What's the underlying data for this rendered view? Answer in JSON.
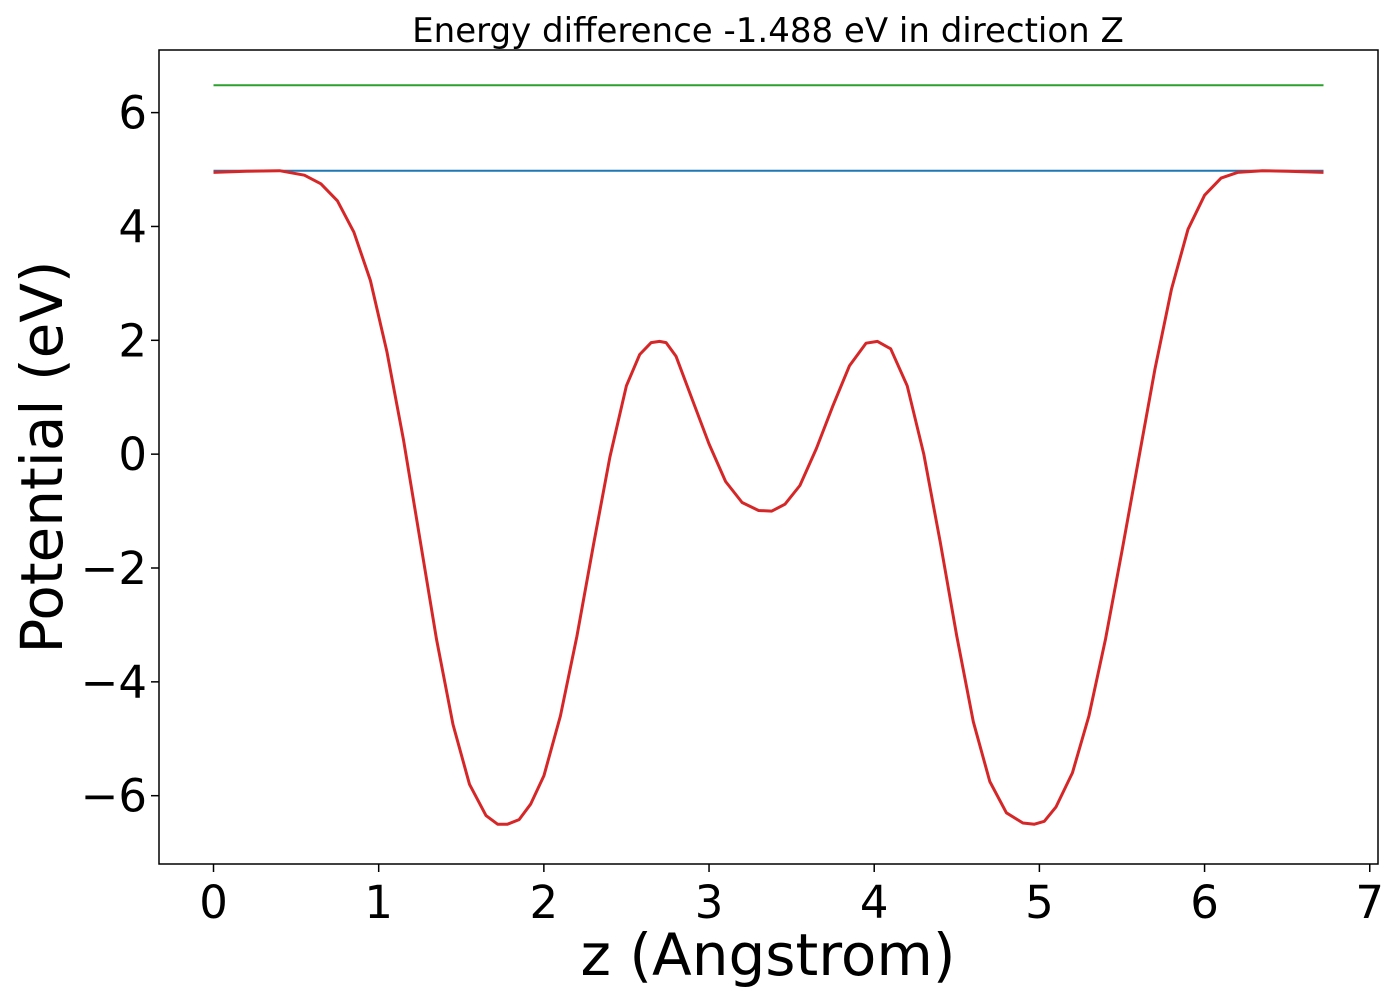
{
  "chart_data": {
    "type": "line",
    "title": "Energy difference -1.488 eV in direction Z",
    "xlabel": "z (Angstrom)",
    "ylabel": "Potential (eV)",
    "xlim": [
      -0.33,
      7.05
    ],
    "ylim": [
      -7.2,
      7.1
    ],
    "xticks": [
      0,
      1,
      2,
      3,
      4,
      5,
      6,
      7
    ],
    "xtick_labels": [
      "0",
      "1",
      "2",
      "3",
      "4",
      "5",
      "6",
      "7"
    ],
    "yticks": [
      -6,
      -4,
      -2,
      0,
      2,
      4,
      6
    ],
    "ytick_labels": [
      "−6",
      "−4",
      "−2",
      "0",
      "2",
      "4",
      "6"
    ],
    "grid": false,
    "series": [
      {
        "color": "#2ca02c",
        "x": [
          0,
          6.72
        ],
        "y": [
          6.48,
          6.48
        ]
      },
      {
        "color": "#1f77b4",
        "x": [
          0,
          6.72
        ],
        "y": [
          4.98,
          4.98
        ]
      },
      {
        "color": "#d62728",
        "x": [
          0,
          0.2,
          0.4,
          0.55,
          0.65,
          0.75,
          0.85,
          0.95,
          1.05,
          1.15,
          1.25,
          1.35,
          1.45,
          1.55,
          1.65,
          1.72,
          1.78,
          1.85,
          1.92,
          2.0,
          2.1,
          2.2,
          2.3,
          2.4,
          2.5,
          2.58,
          2.65,
          2.7,
          2.74,
          2.8,
          2.9,
          3.0,
          3.1,
          3.2,
          3.3,
          3.38,
          3.46,
          3.55,
          3.65,
          3.75,
          3.85,
          3.95,
          4.02,
          4.1,
          4.2,
          4.3,
          4.4,
          4.5,
          4.6,
          4.7,
          4.8,
          4.9,
          4.97,
          5.03,
          5.1,
          5.2,
          5.3,
          5.4,
          5.5,
          5.6,
          5.7,
          5.8,
          5.9,
          6.0,
          6.1,
          6.2,
          6.35,
          6.5,
          6.72
        ],
        "y": [
          4.95,
          4.97,
          4.98,
          4.9,
          4.75,
          4.45,
          3.9,
          3.05,
          1.8,
          0.25,
          -1.5,
          -3.25,
          -4.75,
          -5.8,
          -6.35,
          -6.5,
          -6.5,
          -6.42,
          -6.15,
          -5.65,
          -4.6,
          -3.2,
          -1.6,
          -0.05,
          1.2,
          1.75,
          1.96,
          1.98,
          1.96,
          1.72,
          0.95,
          0.18,
          -0.48,
          -0.85,
          -0.99,
          -1.0,
          -0.88,
          -0.55,
          0.1,
          0.85,
          1.55,
          1.95,
          1.98,
          1.85,
          1.2,
          0.0,
          -1.55,
          -3.2,
          -4.7,
          -5.75,
          -6.3,
          -6.48,
          -6.5,
          -6.45,
          -6.2,
          -5.6,
          -4.6,
          -3.25,
          -1.7,
          -0.1,
          1.5,
          2.9,
          3.95,
          4.55,
          4.85,
          4.95,
          4.98,
          4.97,
          4.95
        ]
      }
    ]
  }
}
